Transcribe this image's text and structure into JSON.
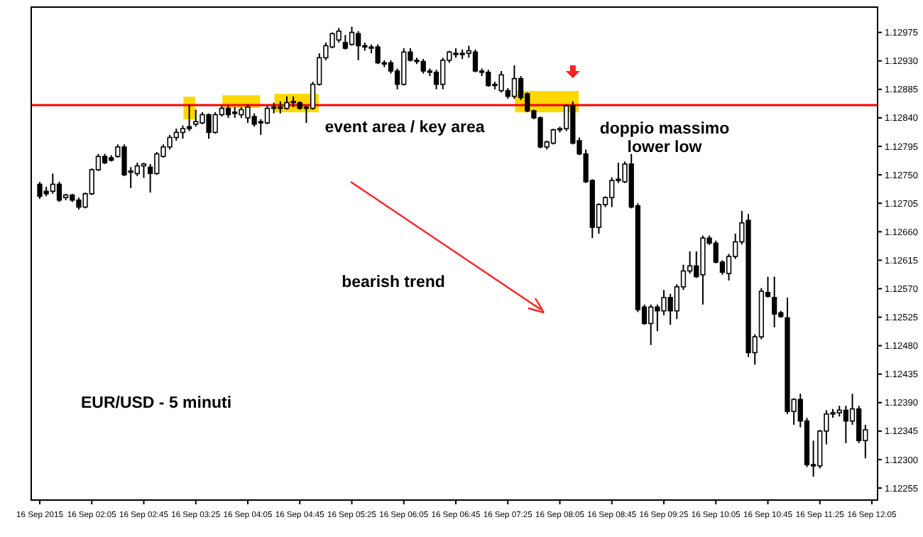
{
  "chart_data": {
    "type": "candlestick",
    "categories": [
      "16 Sep 2015",
      null,
      null,
      null,
      null,
      null,
      null,
      null,
      "16 Sep 02:05",
      null,
      null,
      null,
      null,
      null,
      null,
      null,
      "16 Sep 02:45",
      null,
      null,
      null,
      null,
      null,
      null,
      null,
      "16 Sep 03:25",
      null,
      null,
      null,
      null,
      null,
      null,
      null,
      "16 Sep 04:05",
      null,
      null,
      null,
      null,
      null,
      null,
      null,
      "16 Sep 04:45",
      null,
      null,
      null,
      null,
      null,
      null,
      null,
      "16 Sep 05:25",
      null,
      null,
      null,
      null,
      null,
      null,
      null,
      "16 Sep 06:05",
      null,
      null,
      null,
      null,
      null,
      null,
      null,
      "16 Sep 06:45",
      null,
      null,
      null,
      null,
      null,
      null,
      null,
      "16 Sep 07:25",
      null,
      null,
      null,
      null,
      null,
      null,
      null,
      "16 Sep 08:05",
      null,
      null,
      null,
      null,
      null,
      null,
      null,
      "16 Sep 08:45",
      null,
      null,
      null,
      null,
      null,
      null,
      null,
      "16 Sep 09:25",
      null,
      null,
      null,
      null,
      null,
      null,
      null,
      "16 Sep 10:05",
      null,
      null,
      null,
      null,
      null,
      null,
      null,
      "16 Sep 10:45",
      null,
      null,
      null,
      null,
      null,
      null,
      null,
      "16 Sep 11:25",
      null,
      null,
      null,
      null,
      null,
      null,
      null,
      "16 Sep 12:05"
    ],
    "ohlc": [
      [
        1.12735,
        1.12739,
        1.12712,
        1.12716
      ],
      [
        1.12724,
        1.12731,
        1.12716,
        1.1272
      ],
      [
        1.12724,
        1.12752,
        1.1272,
        1.12735
      ],
      [
        1.12735,
        1.12739,
        1.12707,
        1.1271
      ],
      [
        1.12714,
        1.1272,
        1.1271,
        1.12718
      ],
      [
        1.12718,
        1.1272,
        1.12707,
        1.1271
      ],
      [
        1.1271,
        1.12714,
        1.12695,
        1.12699
      ],
      [
        1.12699,
        1.12722,
        1.12697,
        1.1272
      ],
      [
        1.1272,
        1.1276,
        1.12718,
        1.12758
      ],
      [
        1.12758,
        1.12783,
        1.12756,
        1.12779
      ],
      [
        1.12779,
        1.12783,
        1.12767,
        1.12769
      ],
      [
        1.12777,
        1.12781,
        1.12771,
        1.12773
      ],
      [
        1.12779,
        1.12798,
        1.12777,
        1.12794
      ],
      [
        1.12794,
        1.12798,
        1.12748,
        1.1275
      ],
      [
        1.12754,
        1.12762,
        1.12729,
        1.12756
      ],
      [
        1.12752,
        1.12769,
        1.12748,
        1.12764
      ],
      [
        1.12764,
        1.12769,
        1.12745,
        1.12767
      ],
      [
        1.12762,
        1.12767,
        1.12722,
        1.12752
      ],
      [
        1.12752,
        1.12786,
        1.1275,
        1.12783
      ],
      [
        1.12779,
        1.12798,
        1.12777,
        1.12794
      ],
      [
        1.12794,
        1.12813,
        1.1279,
        1.12809
      ],
      [
        1.12809,
        1.12823,
        1.12804,
        1.12817
      ],
      [
        1.12817,
        1.12828,
        1.12807,
        1.12823
      ],
      [
        1.12826,
        1.12861,
        1.12819,
        1.12823
      ],
      [
        1.1283,
        1.12853,
        1.12826,
        1.12834
      ],
      [
        1.12832,
        1.12849,
        1.1283,
        1.12845
      ],
      [
        1.12845,
        1.12847,
        1.12807,
        1.12817
      ],
      [
        1.12817,
        1.12849,
        1.12815,
        1.12845
      ],
      [
        1.12845,
        1.12859,
        1.12842,
        1.12855
      ],
      [
        1.12855,
        1.12859,
        1.1284,
        1.12845
      ],
      [
        1.12849,
        1.12857,
        1.1284,
        1.12847
      ],
      [
        1.12845,
        1.12857,
        1.1284,
        1.12853
      ],
      [
        1.1284,
        1.12861,
        1.12832,
        1.12857
      ],
      [
        1.12842,
        1.12847,
        1.12826,
        1.1283
      ],
      [
        1.12834,
        1.12838,
        1.12813,
        1.12832
      ],
      [
        1.12832,
        1.12859,
        1.1283,
        1.12855
      ],
      [
        1.12855,
        1.12864,
        1.12847,
        1.12857
      ],
      [
        1.12857,
        1.12866,
        1.12847,
        1.12855
      ],
      [
        1.12855,
        1.12874,
        1.12853,
        1.12864
      ],
      [
        1.12864,
        1.12874,
        1.12857,
        1.12866
      ],
      [
        1.12864,
        1.12866,
        1.12853,
        1.12855
      ],
      [
        1.12857,
        1.12859,
        1.12832,
        1.12855
      ],
      [
        1.12855,
        1.12897,
        1.12853,
        1.12893
      ],
      [
        1.12893,
        1.12942,
        1.12891,
        1.12935
      ],
      [
        1.12935,
        1.12959,
        1.12931,
        1.12954
      ],
      [
        1.12952,
        1.12975,
        1.1295,
        1.12973
      ],
      [
        1.12963,
        1.12982,
        1.12959,
        1.12977
      ],
      [
        1.12959,
        1.12971,
        1.12948,
        1.1295
      ],
      [
        1.12956,
        1.12984,
        1.12954,
        1.12975
      ],
      [
        1.12973,
        1.12977,
        1.12931,
        1.12954
      ],
      [
        1.12954,
        1.12959,
        1.12946,
        1.12952
      ],
      [
        1.12952,
        1.12956,
        1.12942,
        1.1295
      ],
      [
        1.12952,
        1.12956,
        1.12925,
        1.12927
      ],
      [
        1.12927,
        1.12931,
        1.1292,
        1.12925
      ],
      [
        1.12927,
        1.12931,
        1.1291,
        1.12914
      ],
      [
        1.12914,
        1.12918,
        1.12885,
        1.12893
      ],
      [
        1.12893,
        1.1295,
        1.12891,
        1.12944
      ],
      [
        1.12944,
        1.1295,
        1.12929,
        1.12931
      ],
      [
        1.12931,
        1.12935,
        1.12925,
        1.12929
      ],
      [
        1.12929,
        1.12933,
        1.1291,
        1.12914
      ],
      [
        1.12914,
        1.12918,
        1.12906,
        1.12912
      ],
      [
        1.12912,
        1.12916,
        1.12885,
        1.12893
      ],
      [
        1.12893,
        1.12935,
        1.12885,
        1.12931
      ],
      [
        1.12931,
        1.12946,
        1.12927,
        1.12944
      ],
      [
        1.12942,
        1.1295,
        1.12935,
        1.1294
      ],
      [
        1.1294,
        1.12948,
        1.12933,
        1.12942
      ],
      [
        1.12942,
        1.12954,
        1.12935,
        1.12946
      ],
      [
        1.12944,
        1.12948,
        1.12912,
        1.12914
      ],
      [
        1.12914,
        1.12918,
        1.12906,
        1.12912
      ],
      [
        1.12912,
        1.12916,
        1.12889,
        1.12891
      ],
      [
        1.12891,
        1.12897,
        1.12885,
        1.12893
      ],
      [
        1.12883,
        1.12914,
        1.1288,
        1.12908
      ],
      [
        1.12883,
        1.12887,
        1.1287,
        1.12874
      ],
      [
        1.12874,
        1.12923,
        1.1287,
        1.12902
      ],
      [
        1.12902,
        1.12906,
        1.12868,
        1.12872
      ],
      [
        1.12878,
        1.1288,
        1.12849,
        1.12851
      ],
      [
        1.12851,
        1.12853,
        1.12838,
        1.1284
      ],
      [
        1.1284,
        1.12842,
        1.12792,
        1.12794
      ],
      [
        1.12794,
        1.12804,
        1.1279,
        1.12802
      ],
      [
        1.128,
        1.12823,
        1.12798,
        1.12821
      ],
      [
        1.12821,
        1.12826,
        1.12817,
        1.12823
      ],
      [
        1.12823,
        1.12861,
        1.12819,
        1.12859
      ],
      [
        1.12859,
        1.12866,
        1.12798,
        1.128
      ],
      [
        1.12804,
        1.12809,
        1.12781,
        1.12783
      ],
      [
        1.12783,
        1.1279,
        1.12737,
        1.12739
      ],
      [
        1.12741,
        1.12743,
        1.1265,
        1.12667
      ],
      [
        1.12667,
        1.12705,
        1.12657,
        1.12703
      ],
      [
        1.12703,
        1.12716,
        1.12699,
        1.12714
      ],
      [
        1.12714,
        1.12746,
        1.12699,
        1.12741
      ],
      [
        1.12741,
        1.12769,
        1.12737,
        1.12743
      ],
      [
        1.12739,
        1.12771,
        1.12737,
        1.12767
      ],
      [
        1.12767,
        1.12783,
        1.12697,
        1.12699
      ],
      [
        1.12701,
        1.12705,
        1.12533,
        1.12537
      ],
      [
        1.12541,
        1.12545,
        1.12513,
        1.12515
      ],
      [
        1.12515,
        1.12545,
        1.12481,
        1.12541
      ],
      [
        1.12541,
        1.12545,
        1.12503,
        1.12535
      ],
      [
        1.12535,
        1.12568,
        1.12528,
        1.12556
      ],
      [
        1.12556,
        1.12562,
        1.12513,
        1.12535
      ],
      [
        1.12535,
        1.12577,
        1.12522,
        1.12573
      ],
      [
        1.12573,
        1.12608,
        1.12568,
        1.12598
      ],
      [
        1.12598,
        1.12629,
        1.12594,
        1.12606
      ],
      [
        1.12606,
        1.12629,
        1.12587,
        1.12589
      ],
      [
        1.12592,
        1.12654,
        1.12545,
        1.1265
      ],
      [
        1.1265,
        1.12654,
        1.12639,
        1.12642
      ],
      [
        1.12642,
        1.12646,
        1.1261,
        1.12612
      ],
      [
        1.12612,
        1.12615,
        1.12592,
        1.12596
      ],
      [
        1.12594,
        1.12625,
        1.12583,
        1.12621
      ],
      [
        1.12621,
        1.12657,
        1.12617,
        1.12644
      ],
      [
        1.12644,
        1.12693,
        1.1264,
        1.12674
      ],
      [
        1.12678,
        1.12688,
        1.12462,
        1.12469
      ],
      [
        1.12469,
        1.12498,
        1.1245,
        1.12494
      ],
      [
        1.12494,
        1.12571,
        1.1249,
        1.12566
      ],
      [
        1.12564,
        1.12589,
        1.12556,
        1.12558
      ],
      [
        1.12556,
        1.12589,
        1.12509,
        1.1253
      ],
      [
        1.12532,
        1.12535,
        1.12524,
        1.12526
      ],
      [
        1.12524,
        1.12556,
        1.12372,
        1.12376
      ],
      [
        1.12376,
        1.12397,
        1.12355,
        1.12395
      ],
      [
        1.12395,
        1.12404,
        1.12351,
        1.12361
      ],
      [
        1.12361,
        1.12366,
        1.12288,
        1.12292
      ],
      [
        1.12292,
        1.1233,
        1.12273,
        1.1229
      ],
      [
        1.1229,
        1.12347,
        1.12286,
        1.12345
      ],
      [
        1.12345,
        1.12378,
        1.12324,
        1.12372
      ],
      [
        1.12372,
        1.1238,
        1.12366,
        1.12374
      ],
      [
        1.12374,
        1.12385,
        1.12368,
        1.12378
      ],
      [
        1.12378,
        1.12385,
        1.12326,
        1.12361
      ],
      [
        1.12361,
        1.12404,
        1.12355,
        1.1238
      ],
      [
        1.1238,
        1.12385,
        1.12326,
        1.1233
      ],
      [
        1.1233,
        1.12355,
        1.12302,
        1.12347
      ],
      null
    ],
    "ylim": [
      1.12236,
      1.13015
    ],
    "yticks": [
      1.12975,
      {
        "value": 1.1293,
        "label": "1.12930"
      },
      1.12885,
      {
        "value": 1.1284,
        "label": "1.12840"
      },
      1.12795,
      {
        "value": 1.1275,
        "label": "1.12750"
      },
      1.12705,
      {
        "value": 1.1266,
        "label": "1.12660"
      },
      1.12615,
      {
        "value": 1.1257,
        "label": "1.12570"
      },
      1.12525,
      {
        "value": 1.1248,
        "label": "1.12480"
      },
      1.12435,
      {
        "value": 1.1239,
        "label": "1.12390"
      },
      1.12345,
      {
        "value": 1.123,
        "label": "1.12300"
      },
      1.12255
    ],
    "ref_lines": [
      {
        "axis": "y",
        "value": 1.1286,
        "color": "#ff0000"
      }
    ],
    "annotations": [
      "event area / key area",
      "doppio massimo",
      "lower low",
      "bearish trend",
      "EUR/USD - 5 minuti"
    ]
  }
}
